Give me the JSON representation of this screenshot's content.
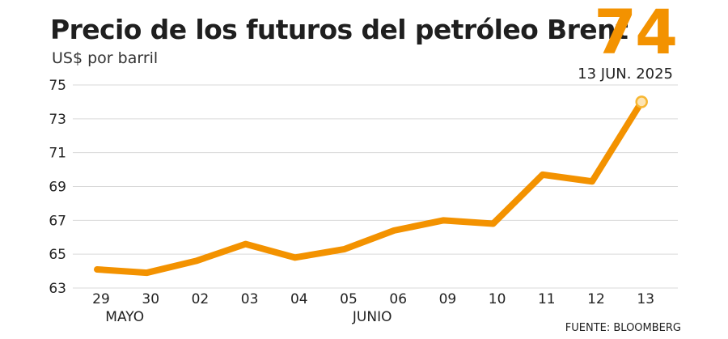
{
  "colors": {
    "accent": "#f39200",
    "marker_fill": "#fde4b3",
    "marker_stroke": "#f7b733",
    "grid": "#d9d9d9",
    "text": "#222222"
  },
  "header": {
    "title": "Precio de los futuros del petróleo Brent",
    "subtitle": "US$ por barril"
  },
  "highlight": {
    "value": "74",
    "date": "13 JUN. 2025"
  },
  "source": "FUENTE: BLOOMBERG",
  "chart_data": {
    "type": "line",
    "title": "Precio de los futuros del petróleo Brent",
    "ylabel": "US$ por barril",
    "xlabel": "",
    "categories": [
      "29",
      "30",
      "02",
      "03",
      "04",
      "05",
      "06",
      "09",
      "10",
      "11",
      "12",
      "13"
    ],
    "month_labels": [
      {
        "label": "MAYO",
        "at": "30"
      },
      {
        "label": "JUNIO",
        "at": "06"
      }
    ],
    "ylim": [
      63,
      75
    ],
    "yticks": [
      63,
      65,
      67,
      69,
      71,
      73,
      75
    ],
    "grid": true,
    "legend": "none",
    "series": [
      {
        "values": [
          64.1,
          63.9,
          64.6,
          65.6,
          64.8,
          65.3,
          66.4,
          67.0,
          66.8,
          69.7,
          69.3,
          74.0
        ]
      }
    ]
  }
}
